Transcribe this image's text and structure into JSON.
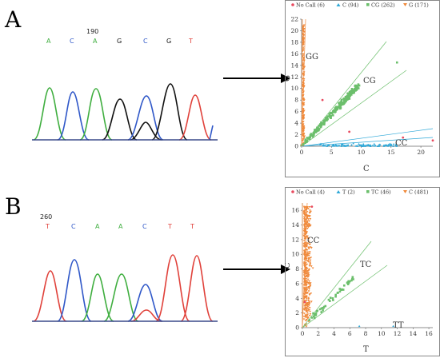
{
  "panels": [
    {
      "letter": "A",
      "position_label": "190",
      "bases": [
        "A",
        "C",
        "A",
        "G",
        "C",
        "G",
        "T"
      ],
      "scatter": {
        "legend": [
          {
            "label": "No Call (6)",
            "color": "#e84a5f",
            "marker": "circle"
          },
          {
            "label": "C (94)",
            "color": "#2ea8d8",
            "marker": "triangle"
          },
          {
            "label": "CG (262)",
            "color": "#6cbf6c",
            "marker": "square"
          },
          {
            "label": "G (171)",
            "color": "#f08a3c",
            "marker": "triangle-down"
          }
        ],
        "xlabel": "C",
        "ylabel": "G",
        "x_ticks": [
          0,
          5,
          10,
          15,
          20
        ],
        "y_ticks": [
          0,
          2,
          4,
          6,
          8,
          10,
          12,
          14,
          16,
          18,
          20,
          22
        ],
        "cluster_labels": [
          "GG",
          "CG",
          "CC"
        ]
      }
    },
    {
      "letter": "B",
      "position_label": "260",
      "bases": [
        "T",
        "C",
        "A",
        "A",
        "C",
        "T",
        "T"
      ],
      "scatter": {
        "legend": [
          {
            "label": "No Call (4)",
            "color": "#e84a5f",
            "marker": "circle"
          },
          {
            "label": "T (2)",
            "color": "#2ea8d8",
            "marker": "triangle"
          },
          {
            "label": "TC (46)",
            "color": "#6cbf6c",
            "marker": "square"
          },
          {
            "label": "C (481)",
            "color": "#f08a3c",
            "marker": "triangle-down"
          }
        ],
        "xlabel": "T",
        "ylabel": "C",
        "x_ticks": [
          0,
          2,
          4,
          6,
          8,
          10,
          12,
          14,
          16
        ],
        "y_ticks": [
          0,
          2,
          4,
          6,
          8,
          10,
          12,
          14,
          16
        ],
        "cluster_labels": [
          "CC",
          "TC",
          "TT"
        ]
      }
    }
  ],
  "colors": {
    "A": "#3fae3f",
    "C": "#2f57c8",
    "G": "#111111",
    "T": "#e0413a",
    "arrow": "#000000"
  }
}
